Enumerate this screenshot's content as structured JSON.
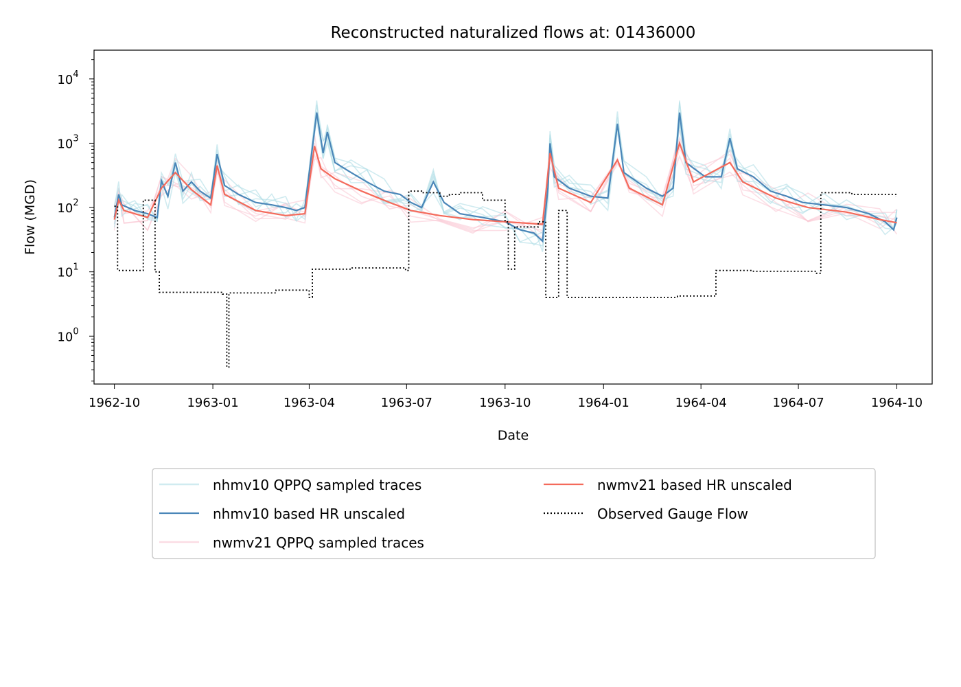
{
  "chart_data": {
    "type": "line",
    "title": "Reconstructed naturalized flows at: 01436000",
    "xlabel": "Date",
    "ylabel": "Flow (MGD)",
    "yscale": "log",
    "ylim": [
      0.18,
      28000
    ],
    "xlim": [
      "1962-09-12",
      "1964-11-03"
    ],
    "x_ticks": [
      "1962-10",
      "1963-01",
      "1963-04",
      "1963-07",
      "1963-10",
      "1964-01",
      "1964-04",
      "1964-07",
      "1964-10"
    ],
    "y_ticks": [
      {
        "value": 1,
        "base": "10",
        "exp": "0"
      },
      {
        "value": 10,
        "base": "10",
        "exp": "1"
      },
      {
        "value": 100,
        "base": "10",
        "exp": "2"
      },
      {
        "value": 1000,
        "base": "10",
        "exp": "3"
      },
      {
        "value": 10000,
        "base": "10",
        "exp": "4"
      }
    ],
    "grid": false,
    "legend": {
      "placement": "below-center",
      "columns": 2
    },
    "colors": {
      "nhm_trace": "#b0dde6",
      "nhm_hr": "#4a86b8",
      "nwm_trace": "#f9c4d2",
      "nwm_hr": "#f46a5b",
      "observed": "#000000"
    },
    "series": [
      {
        "name": "nhmv10 QPPQ sampled traces",
        "key": "nhm_trace",
        "style": "solid-light"
      },
      {
        "name": "nhmv10 based HR unscaled",
        "key": "nhm_hr",
        "style": "solid"
      },
      {
        "name": "nwmv21 QPPQ sampled traces",
        "key": "nwm_trace",
        "style": "solid-light"
      },
      {
        "name": "nwmv21 based HR unscaled",
        "key": "nwm_hr",
        "style": "solid"
      },
      {
        "name": "Observed Gauge Flow",
        "key": "observed",
        "style": "dotted"
      }
    ],
    "approx_points": {
      "nhm_hr": [
        [
          "1962-10-01",
          70
        ],
        [
          "1962-10-05",
          160
        ],
        [
          "1962-10-08",
          110
        ],
        [
          "1962-10-20",
          90
        ],
        [
          "1962-11-01",
          80
        ],
        [
          "1962-11-10",
          70
        ],
        [
          "1962-11-14",
          260
        ],
        [
          "1962-11-20",
          150
        ],
        [
          "1962-11-27",
          500
        ],
        [
          "1962-12-04",
          180
        ],
        [
          "1962-12-12",
          250
        ],
        [
          "1962-12-20",
          180
        ],
        [
          "1962-12-30",
          140
        ],
        [
          "1963-01-05",
          680
        ],
        [
          "1963-01-12",
          220
        ],
        [
          "1963-01-25",
          160
        ],
        [
          "1963-02-10",
          120
        ],
        [
          "1963-02-25",
          110
        ],
        [
          "1963-03-10",
          100
        ],
        [
          "1963-03-20",
          90
        ],
        [
          "1963-03-28",
          100
        ],
        [
          "1963-04-08",
          3000
        ],
        [
          "1963-04-14",
          700
        ],
        [
          "1963-04-18",
          1500
        ],
        [
          "1963-04-25",
          500
        ],
        [
          "1963-05-10",
          350
        ],
        [
          "1963-05-25",
          250
        ],
        [
          "1963-06-10",
          180
        ],
        [
          "1963-06-25",
          160
        ],
        [
          "1963-07-05",
          120
        ],
        [
          "1963-07-15",
          100
        ],
        [
          "1963-07-26",
          250
        ],
        [
          "1963-08-05",
          120
        ],
        [
          "1963-08-20",
          80
        ],
        [
          "1963-09-10",
          70
        ],
        [
          "1963-10-01",
          60
        ],
        [
          "1963-10-15",
          45
        ],
        [
          "1963-10-28",
          40
        ],
        [
          "1963-11-05",
          30
        ],
        [
          "1963-11-10",
          200
        ],
        [
          "1963-11-12",
          1000
        ],
        [
          "1963-11-16",
          300
        ],
        [
          "1963-11-30",
          200
        ],
        [
          "1963-12-20",
          150
        ],
        [
          "1964-01-05",
          140
        ],
        [
          "1964-01-14",
          2000
        ],
        [
          "1964-01-20",
          350
        ],
        [
          "1964-02-10",
          200
        ],
        [
          "1964-02-25",
          150
        ],
        [
          "1964-03-06",
          200
        ],
        [
          "1964-03-12",
          3000
        ],
        [
          "1964-03-18",
          500
        ],
        [
          "1964-04-05",
          300
        ],
        [
          "1964-04-20",
          300
        ],
        [
          "1964-04-28",
          1200
        ],
        [
          "1964-05-05",
          400
        ],
        [
          "1964-05-20",
          300
        ],
        [
          "1964-06-05",
          180
        ],
        [
          "1964-06-20",
          150
        ],
        [
          "1964-07-05",
          120
        ],
        [
          "1964-07-25",
          110
        ],
        [
          "1964-08-15",
          100
        ],
        [
          "1964-09-05",
          80
        ],
        [
          "1964-09-20",
          60
        ],
        [
          "1964-09-28",
          45
        ],
        [
          "1964-10-01",
          70
        ]
      ],
      "nwm_hr": [
        [
          "1962-10-01",
          65
        ],
        [
          "1962-10-05",
          130
        ],
        [
          "1962-10-10",
          90
        ],
        [
          "1962-11-01",
          70
        ],
        [
          "1962-11-14",
          200
        ],
        [
          "1962-11-27",
          350
        ],
        [
          "1962-12-12",
          190
        ],
        [
          "1962-12-30",
          110
        ],
        [
          "1963-01-05",
          450
        ],
        [
          "1963-01-12",
          160
        ],
        [
          "1963-02-10",
          90
        ],
        [
          "1963-03-10",
          75
        ],
        [
          "1963-03-28",
          80
        ],
        [
          "1963-04-06",
          900
        ],
        [
          "1963-04-12",
          400
        ],
        [
          "1963-04-25",
          280
        ],
        [
          "1963-05-20",
          180
        ],
        [
          "1963-06-15",
          120
        ],
        [
          "1963-07-05",
          90
        ],
        [
          "1963-08-01",
          75
        ],
        [
          "1963-09-01",
          65
        ],
        [
          "1963-10-01",
          60
        ],
        [
          "1963-11-05",
          55
        ],
        [
          "1963-11-12",
          700
        ],
        [
          "1963-11-20",
          200
        ],
        [
          "1963-12-20",
          120
        ],
        [
          "1964-01-14",
          550
        ],
        [
          "1964-01-25",
          200
        ],
        [
          "1964-02-25",
          110
        ],
        [
          "1964-03-12",
          1000
        ],
        [
          "1964-03-25",
          250
        ],
        [
          "1964-04-28",
          500
        ],
        [
          "1964-05-10",
          250
        ],
        [
          "1964-06-10",
          140
        ],
        [
          "1964-07-10",
          100
        ],
        [
          "1964-08-15",
          85
        ],
        [
          "1964-09-15",
          65
        ],
        [
          "1964-10-01",
          58
        ]
      ],
      "observed": [
        [
          "1962-10-01",
          105
        ],
        [
          "1962-10-04",
          10.5
        ],
        [
          "1962-10-20",
          10.5
        ],
        [
          "1962-10-28",
          130
        ],
        [
          "1962-11-08",
          10
        ],
        [
          "1962-11-12",
          4.8
        ],
        [
          "1962-12-30",
          4.8
        ],
        [
          "1963-01-10",
          4.5
        ],
        [
          "1963-01-14",
          0.33
        ],
        [
          "1963-01-16",
          4.7
        ],
        [
          "1963-03-01",
          5.2
        ],
        [
          "1963-04-01",
          4
        ],
        [
          "1963-04-04",
          11
        ],
        [
          "1963-05-10",
          11.5
        ],
        [
          "1963-06-30",
          10.5
        ],
        [
          "1963-07-03",
          180
        ],
        [
          "1963-07-15",
          170
        ],
        [
          "1963-08-01",
          150
        ],
        [
          "1963-08-10",
          160
        ],
        [
          "1963-08-20",
          170
        ],
        [
          "1963-09-10",
          130
        ],
        [
          "1963-10-01",
          60
        ],
        [
          "1963-10-04",
          11
        ],
        [
          "1963-10-10",
          50
        ],
        [
          "1963-11-01",
          60
        ],
        [
          "1963-11-08",
          4
        ],
        [
          "1963-11-15",
          4
        ],
        [
          "1963-11-20",
          90
        ],
        [
          "1963-11-28",
          4
        ],
        [
          "1963-12-20",
          4
        ],
        [
          "1964-01-20",
          4
        ],
        [
          "1964-02-20",
          4
        ],
        [
          "1964-03-10",
          4.2
        ],
        [
          "1964-04-12",
          4.2
        ],
        [
          "1964-04-15",
          10.5
        ],
        [
          "1964-05-20",
          10.2
        ],
        [
          "1964-07-18",
          9.5
        ],
        [
          "1964-07-22",
          170
        ],
        [
          "1964-08-20",
          160
        ],
        [
          "1964-09-30",
          145
        ]
      ]
    }
  }
}
